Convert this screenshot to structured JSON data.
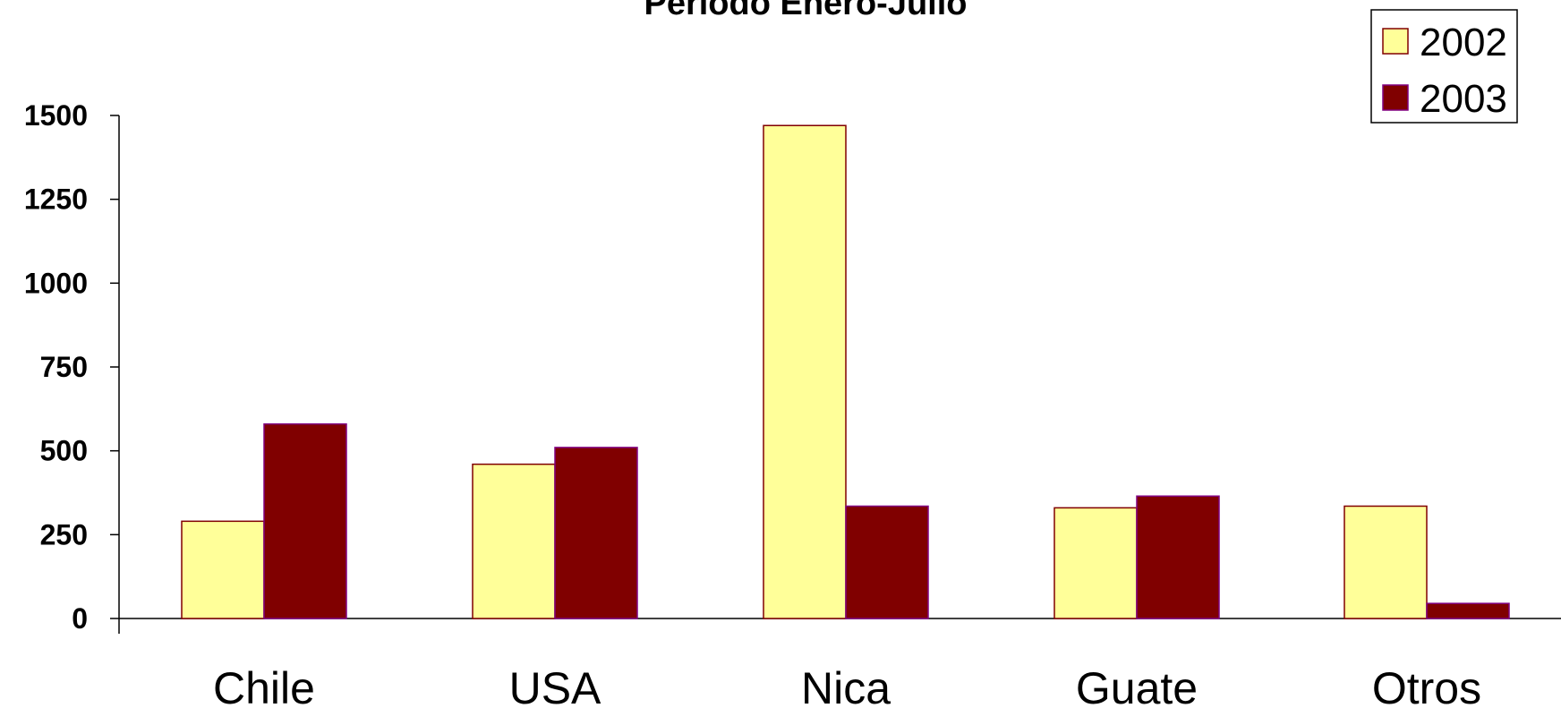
{
  "chart_data": {
    "type": "bar",
    "title": "Periodo Enero-Julio",
    "categories": [
      "Chile",
      "USA",
      "Nica",
      "Guate",
      "Otros"
    ],
    "series": [
      {
        "name": "2002",
        "values": [
          290,
          460,
          1470,
          330,
          335
        ]
      },
      {
        "name": "2003",
        "values": [
          580,
          510,
          335,
          365,
          45
        ]
      }
    ],
    "ylim": [
      0,
      1500
    ],
    "yticks": [
      "0",
      "250",
      "500",
      "750",
      "1000",
      "1250",
      "1500"
    ],
    "xlabel": "",
    "ylabel": "",
    "grid": false,
    "legend_position": "top-right",
    "colors": {
      "2002": "#FFFF99",
      "2003": "#800000",
      "bar_border_2002": "#800000",
      "bar_border_2003": "#800080"
    }
  }
}
